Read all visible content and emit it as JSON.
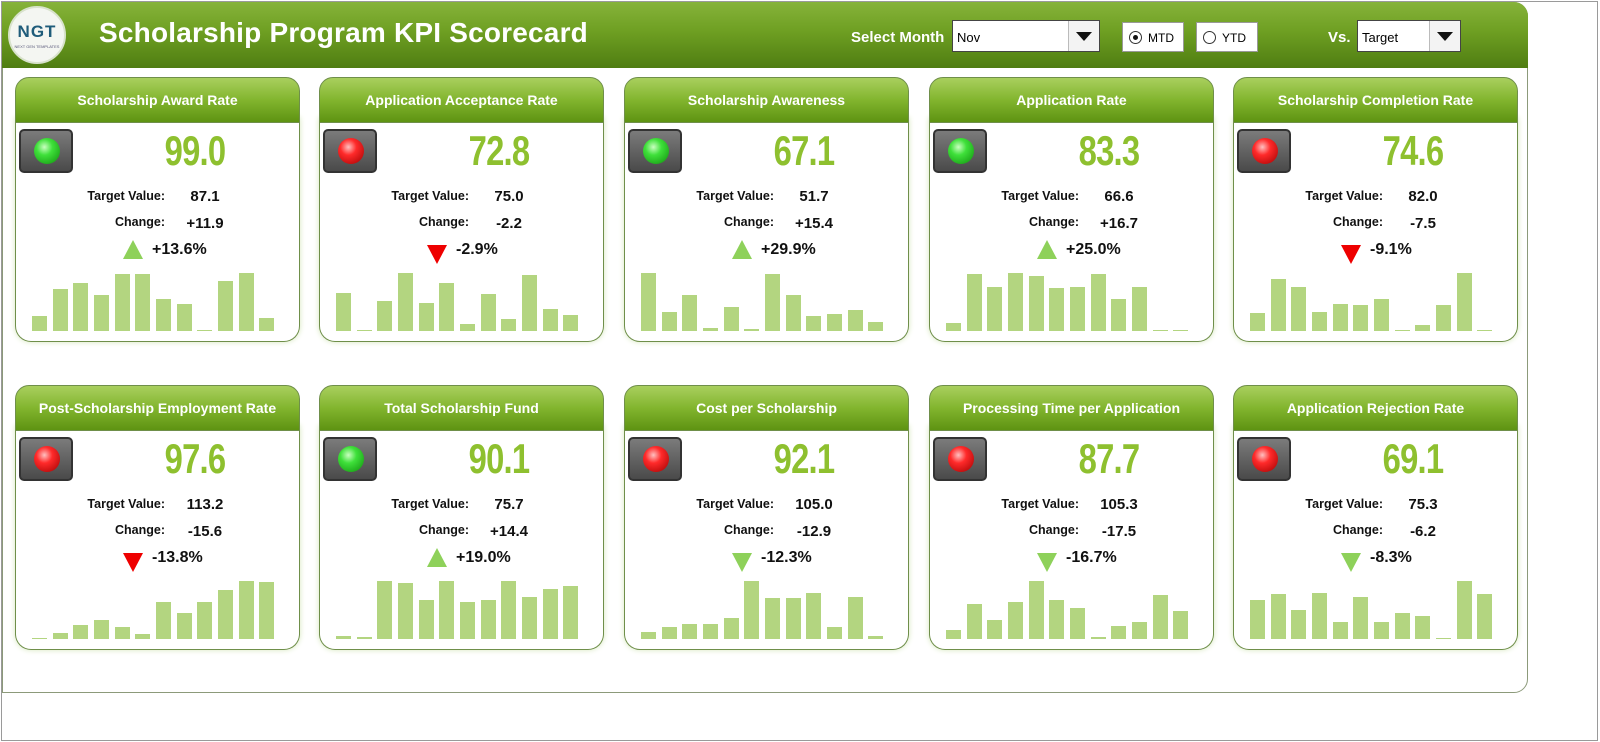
{
  "header": {
    "logo_text": "NGT",
    "logo_subtext": "NEXT GEN TEMPLATES",
    "title": "Scholarship Program KPI Scorecard",
    "select_month_label": "Select Month",
    "month_value": "Nov",
    "radio_mtd": "MTD",
    "radio_ytd": "YTD",
    "radio_selected": "MTD",
    "vs_label": "Vs.",
    "vs_value": "Target"
  },
  "colors": {
    "header_green": "#6e9f22",
    "value_green": "#8ec02f",
    "bar_green": "#b3d580",
    "up_arrow": "#8ed15a",
    "down_arrow_red": "#ee0000"
  },
  "labels": {
    "target": "Target Value:",
    "change": "Change:"
  },
  "kpis": [
    {
      "title": "Scholarship Award Rate",
      "status": "green",
      "value": "99.0",
      "target": "87.1",
      "change": "+11.9",
      "pct": "+13.6%",
      "arrow": "up",
      "bars": [
        0.25,
        0.72,
        0.82,
        0.62,
        0.98,
        0.98,
        0.55,
        0.46,
        0.0,
        0.87,
        1.0,
        0.22
      ]
    },
    {
      "title": "Application Acceptance Rate",
      "status": "red",
      "value": "72.8",
      "target": "75.0",
      "change": "-2.2",
      "pct": "-2.9%",
      "arrow": "down",
      "bars": [
        0.66,
        0.0,
        0.52,
        1.0,
        0.48,
        0.83,
        0.12,
        0.64,
        0.2,
        0.96,
        0.38,
        0.27
      ]
    },
    {
      "title": "Scholarship Awareness",
      "status": "green",
      "value": "67.1",
      "target": "51.7",
      "change": "+15.4",
      "pct": "+29.9%",
      "arrow": "up",
      "bars": [
        1.0,
        0.33,
        0.62,
        0.06,
        0.42,
        0.03,
        0.98,
        0.62,
        0.25,
        0.3,
        0.36,
        0.15
      ]
    },
    {
      "title": "Application Rate",
      "status": "green",
      "value": "83.3",
      "target": "66.6",
      "change": "+16.7",
      "pct": "+25.0%",
      "arrow": "up",
      "bars": [
        0.13,
        0.98,
        0.76,
        1.0,
        0.94,
        0.74,
        0.76,
        0.98,
        0.56,
        0.76,
        0.0,
        0.02
      ]
    },
    {
      "title": "Scholarship Completion Rate",
      "status": "red",
      "value": "74.6",
      "target": "82.0",
      "change": "-7.5",
      "pct": "-9.1%",
      "arrow": "down",
      "bars": [
        0.31,
        0.89,
        0.75,
        0.33,
        0.46,
        0.45,
        0.56,
        0.0,
        0.1,
        0.45,
        1.0,
        0.0
      ]
    },
    {
      "title": "Post-Scholarship Employment Rate",
      "status": "red",
      "value": "97.6",
      "target": "113.2",
      "change": "-15.6",
      "pct": "-13.8%",
      "arrow": "down",
      "bars": [
        0.02,
        0.11,
        0.24,
        0.33,
        0.21,
        0.08,
        0.63,
        0.44,
        0.64,
        0.84,
        1.0,
        0.98
      ]
    },
    {
      "title": "Total Scholarship Fund",
      "status": "green",
      "value": "90.1",
      "target": "75.7",
      "change": "+14.4",
      "pct": "+19.0%",
      "arrow": "up",
      "bars": [
        0.05,
        0.03,
        1.0,
        0.96,
        0.68,
        1.0,
        0.63,
        0.68,
        1.0,
        0.72,
        0.86,
        0.91
      ]
    },
    {
      "title": "Cost per Scholarship",
      "status": "red",
      "value": "92.1",
      "target": "105.0",
      "change": "-12.9",
      "pct": "-12.3%",
      "arrow": "down-green",
      "bars": [
        0.12,
        0.21,
        0.26,
        0.26,
        0.37,
        1.0,
        0.7,
        0.7,
        0.8,
        0.21,
        0.73,
        0.06
      ]
    },
    {
      "title": "Processing Time per Application",
      "status": "red",
      "value": "87.7",
      "target": "105.3",
      "change": "-17.5",
      "pct": "-16.7%",
      "arrow": "down-green",
      "bars": [
        0.16,
        0.6,
        0.33,
        0.63,
        1.0,
        0.67,
        0.54,
        0.04,
        0.22,
        0.29,
        0.76,
        0.49
      ]
    },
    {
      "title": "Application Rejection Rate",
      "status": "red",
      "value": "69.1",
      "target": "75.3",
      "change": "-6.2",
      "pct": "-8.3%",
      "arrow": "down-green",
      "bars": [
        0.67,
        0.77,
        0.5,
        0.79,
        0.29,
        0.73,
        0.29,
        0.45,
        0.4,
        0.0,
        1.0,
        0.78
      ]
    }
  ]
}
